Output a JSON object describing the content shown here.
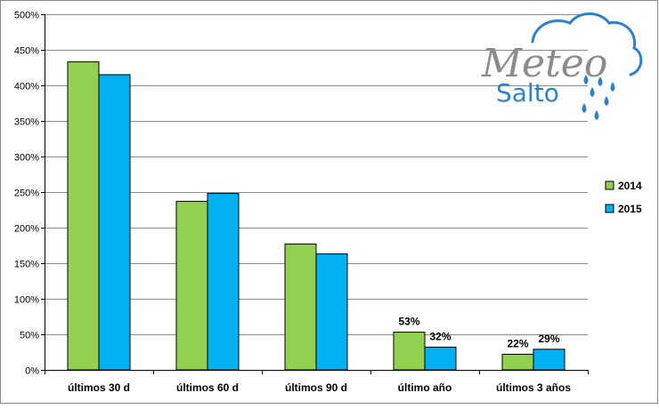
{
  "chart_data": {
    "type": "bar",
    "title": "",
    "xlabel": "",
    "ylabel": "",
    "ylim": [
      0,
      500
    ],
    "ytick_step": 50,
    "ytick_suffix": "%",
    "grid": true,
    "legend_position": "right",
    "categories": [
      "últimos 30 d",
      "últimos 60 d",
      "últimos 90 d",
      "último año",
      "últimos 3 años"
    ],
    "series": [
      {
        "name": "2014",
        "color": "#92d050",
        "values": [
          433,
          237,
          177,
          53,
          22
        ],
        "labels": [
          null,
          null,
          null,
          "53%",
          "22%"
        ]
      },
      {
        "name": "2015",
        "color": "#00b0f0",
        "values": [
          415,
          248,
          163,
          32,
          29
        ],
        "labels": [
          null,
          null,
          null,
          "32%",
          "29%"
        ]
      }
    ]
  },
  "logo": {
    "word1": "Meteo",
    "word2": "Salto",
    "cloud_color": "#2f82c8",
    "icon": "cloud-rain-icon"
  }
}
